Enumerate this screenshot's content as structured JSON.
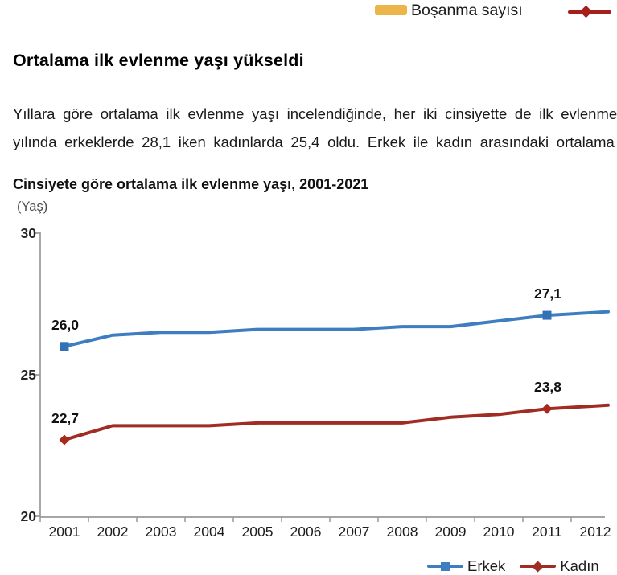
{
  "page": {
    "background": "#ffffff"
  },
  "top_legend_fragment": {
    "divorce_label": "Boşanma sayısı",
    "divorce_swatch_color": "#ECB54A",
    "partial_series_marker_color": "#A5201D"
  },
  "heading": "Ortalama ilk evlenme yaşı yükseldi",
  "paragraph": {
    "line1": "Yıllara göre ortalama ilk evlenme yaşı incelendiğinde, her iki cinsiyette de ilk evlenme",
    "line2": "yılında erkeklerde 28,1 iken kadınlarda 25,4 oldu. Erkek ile kadın arasındaki ortalama"
  },
  "chart": {
    "title": "Cinsiyete göre ortalama ilk evlenme yaşı, 2001-2021",
    "unit_label": "(Yaş)"
  },
  "chart_data": {
    "type": "line",
    "title": "Cinsiyete göre ortalama ilk evlenme yaşı, 2001-2021",
    "ylabel": "(Yaş)",
    "xlabel": "",
    "x": [
      2001,
      2002,
      2003,
      2004,
      2005,
      2006,
      2007,
      2008,
      2009,
      2010,
      2011,
      2012
    ],
    "ylim": [
      20,
      30
    ],
    "yticks": [
      30,
      25,
      20
    ],
    "grid": false,
    "legend_position": "bottom",
    "note": "Chart is clipped at the right edge of the screenshot after 2012; full series runs to 2021.",
    "axis_color": "#999999",
    "series": [
      {
        "name": "Erkek",
        "color": "#3E7DC0",
        "marker": "square",
        "marker_color": "#3470B5",
        "values": [
          26.0,
          26.4,
          26.5,
          26.5,
          26.6,
          26.6,
          26.6,
          26.7,
          26.7,
          26.9,
          27.1,
          27.2
        ],
        "labeled_points": [
          {
            "year": 2001,
            "label": "26,0"
          },
          {
            "year": 2011,
            "label": "27,1"
          }
        ]
      },
      {
        "name": "Kadın",
        "color": "#A02C24",
        "marker": "diamond",
        "marker_color": "#A8291C",
        "values": [
          22.7,
          23.2,
          23.2,
          23.2,
          23.3,
          23.3,
          23.3,
          23.3,
          23.5,
          23.6,
          23.8,
          23.9
        ],
        "labeled_points": [
          {
            "year": 2001,
            "label": "22,7"
          },
          {
            "year": 2011,
            "label": "23,8"
          }
        ]
      }
    ]
  },
  "legend": {
    "items": [
      {
        "label": "Erkek",
        "color": "#3E7DC0",
        "marker": "square"
      },
      {
        "label": "Kadın",
        "color": "#A02C24",
        "marker": "diamond"
      }
    ]
  }
}
